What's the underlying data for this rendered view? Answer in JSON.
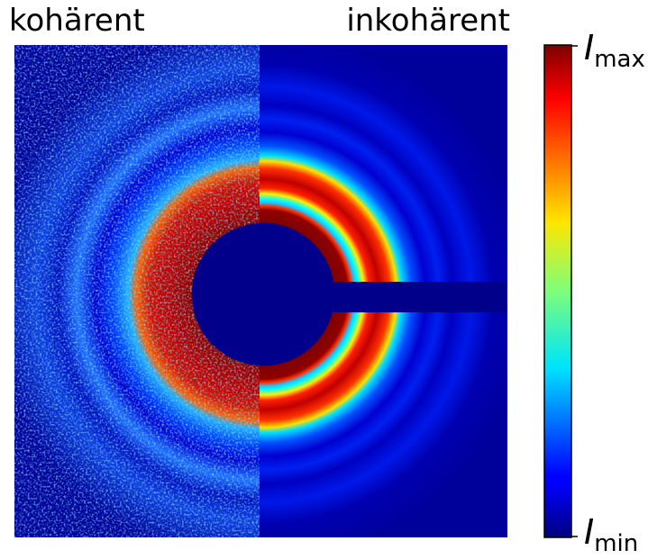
{
  "labels": {
    "left": "kohärent",
    "right": "inkohärent"
  },
  "colorbar": {
    "max": {
      "base": "I",
      "sub": "max"
    },
    "min": {
      "base": "I",
      "sub": "min"
    }
  }
}
